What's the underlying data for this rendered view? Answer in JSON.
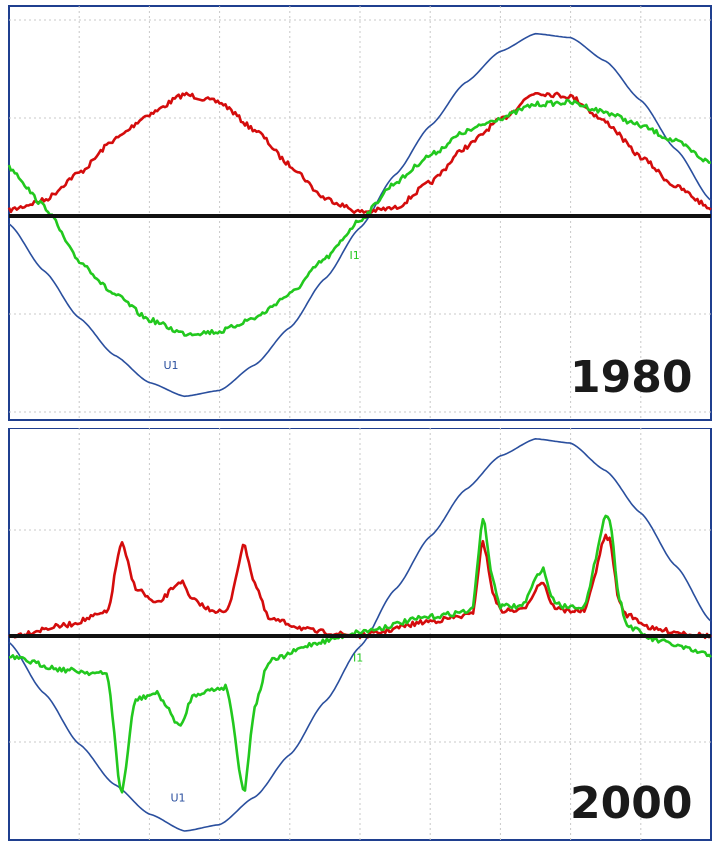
{
  "colors": {
    "voltage": "#2a4f9e",
    "current": "#d40c0c",
    "current_2": "#22c81e",
    "zero_line": "#111111",
    "grid": "#c8c8c8",
    "frame": "#1f3f8f"
  },
  "chart_data": [
    {
      "type": "line",
      "title": "1980",
      "grid": true,
      "xlim": [
        0,
        1.0
      ],
      "ylim": [
        -1.0,
        1.0
      ],
      "series": [
        {
          "name": "U1",
          "key": "voltage",
          "x": [
            0,
            0.05,
            0.1,
            0.15,
            0.2,
            0.25,
            0.3,
            0.35,
            0.4,
            0.45,
            0.5,
            0.55,
            0.6,
            0.65,
            0.7,
            0.75,
            0.8,
            0.85,
            0.9,
            0.95,
            1.0
          ],
          "y": [
            -0.04,
            -0.28,
            -0.52,
            -0.71,
            -0.85,
            -0.92,
            -0.89,
            -0.76,
            -0.57,
            -0.32,
            -0.06,
            0.21,
            0.46,
            0.68,
            0.84,
            0.93,
            0.91,
            0.79,
            0.59,
            0.34,
            0.08
          ]
        },
        {
          "name": "",
          "key": "current",
          "x": [
            0,
            0.05,
            0.1,
            0.15,
            0.2,
            0.25,
            0.3,
            0.35,
            0.4,
            0.45,
            0.5,
            0.55,
            0.6,
            0.65,
            0.7,
            0.75,
            0.8,
            0.85,
            0.9,
            0.95,
            1.0
          ],
          "y": [
            0.03,
            0.08,
            0.22,
            0.39,
            0.52,
            0.62,
            0.58,
            0.44,
            0.26,
            0.09,
            0.02,
            0.04,
            0.17,
            0.35,
            0.49,
            0.63,
            0.61,
            0.48,
            0.3,
            0.15,
            0.04
          ]
        },
        {
          "name": "I1",
          "key": "current_2",
          "x": [
            0,
            0.05,
            0.1,
            0.15,
            0.2,
            0.25,
            0.3,
            0.35,
            0.4,
            0.45,
            0.5,
            0.55,
            0.6,
            0.65,
            0.7,
            0.75,
            0.8,
            0.85,
            0.9,
            0.95,
            1.0
          ],
          "y": [
            0.25,
            0.05,
            -0.23,
            -0.4,
            -0.53,
            -0.6,
            -0.59,
            -0.52,
            -0.4,
            -0.22,
            -0.02,
            0.17,
            0.31,
            0.43,
            0.5,
            0.57,
            0.58,
            0.53,
            0.46,
            0.38,
            0.27
          ]
        }
      ]
    },
    {
      "type": "line",
      "title": "2000",
      "grid": true,
      "xlim": [
        0,
        1.0
      ],
      "ylim": [
        -1.0,
        1.0
      ],
      "series": [
        {
          "name": "U1",
          "key": "voltage",
          "x": [
            0,
            0.05,
            0.1,
            0.15,
            0.2,
            0.25,
            0.3,
            0.35,
            0.4,
            0.45,
            0.5,
            0.55,
            0.6,
            0.65,
            0.7,
            0.75,
            0.8,
            0.85,
            0.9,
            0.95,
            1.0
          ],
          "y": [
            -0.03,
            -0.27,
            -0.51,
            -0.7,
            -0.84,
            -0.92,
            -0.89,
            -0.76,
            -0.56,
            -0.31,
            -0.05,
            0.22,
            0.47,
            0.69,
            0.85,
            0.93,
            0.91,
            0.78,
            0.58,
            0.33,
            0.07
          ]
        },
        {
          "name": "",
          "key": "current",
          "x": [
            0,
            0.08,
            0.14,
            0.16,
            0.18,
            0.21,
            0.245,
            0.26,
            0.27,
            0.28,
            0.31,
            0.335,
            0.35,
            0.37,
            0.44,
            0.5,
            0.6,
            0.66,
            0.675,
            0.69,
            0.7,
            0.73,
            0.76,
            0.775,
            0.79,
            0.82,
            0.85,
            0.855,
            0.87,
            0.88,
            0.92,
            1.0
          ],
          "y": [
            0.0,
            0.05,
            0.11,
            0.44,
            0.23,
            0.15,
            0.26,
            0.17,
            0.16,
            0.13,
            0.11,
            0.43,
            0.25,
            0.08,
            0.02,
            0.0,
            0.07,
            0.1,
            0.45,
            0.2,
            0.12,
            0.12,
            0.26,
            0.14,
            0.12,
            0.12,
            0.47,
            0.46,
            0.15,
            0.1,
            0.03,
            0.0
          ]
        },
        {
          "name": "I1",
          "key": "current_2",
          "x": [
            0,
            0.08,
            0.14,
            0.16,
            0.18,
            0.21,
            0.245,
            0.26,
            0.27,
            0.28,
            0.31,
            0.335,
            0.35,
            0.37,
            0.44,
            0.5,
            0.6,
            0.66,
            0.675,
            0.69,
            0.7,
            0.73,
            0.76,
            0.775,
            0.79,
            0.82,
            0.85,
            0.855,
            0.87,
            0.88,
            0.92,
            1.0
          ],
          "y": [
            -0.1,
            -0.16,
            -0.18,
            -0.75,
            -0.3,
            -0.27,
            -0.43,
            -0.29,
            -0.27,
            -0.26,
            -0.24,
            -0.74,
            -0.33,
            -0.12,
            -0.03,
            0.02,
            0.09,
            0.12,
            0.56,
            0.25,
            0.14,
            0.14,
            0.32,
            0.17,
            0.14,
            0.14,
            0.57,
            0.56,
            0.17,
            0.05,
            -0.02,
            -0.09
          ]
        }
      ]
    }
  ]
}
